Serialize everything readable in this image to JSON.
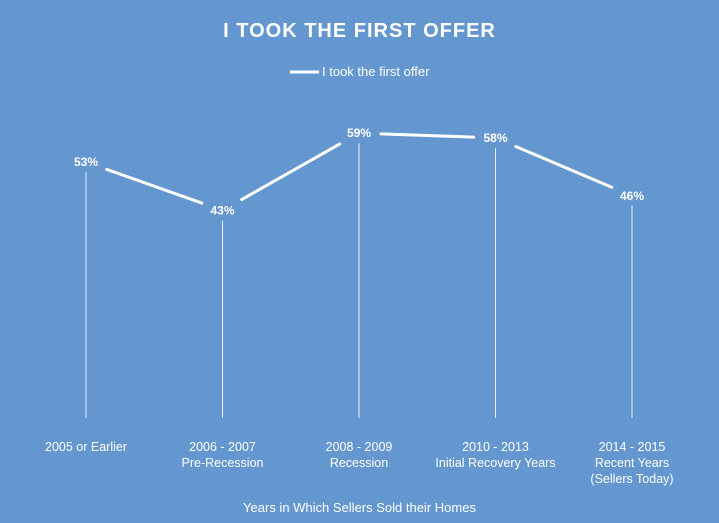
{
  "chart_data": {
    "type": "line",
    "title": "I TOOK THE FIRST OFFER",
    "xlabel": "Years in Which Sellers Sold their Homes",
    "ylabel": "",
    "ylim": [
      0,
      70
    ],
    "grid": false,
    "legend_position": "top",
    "categories": [
      [
        "2005 or Earlier"
      ],
      [
        "2006 - 2007",
        "Pre-Recession"
      ],
      [
        "2008 - 2009",
        "Recession"
      ],
      [
        "2010 - 2013",
        "Initial Recovery Years"
      ],
      [
        "2014 - 2015",
        "Recent Years",
        "(Sellers Today)"
      ]
    ],
    "series": [
      {
        "name": "I took the first offer",
        "values": [
          53,
          43,
          59,
          58,
          46
        ],
        "labels": [
          "53%",
          "43%",
          "59%",
          "58%",
          "46%"
        ]
      }
    ]
  },
  "colors": {
    "background": "#6497cf",
    "line": "#ffffff",
    "text": "#ffffff"
  }
}
